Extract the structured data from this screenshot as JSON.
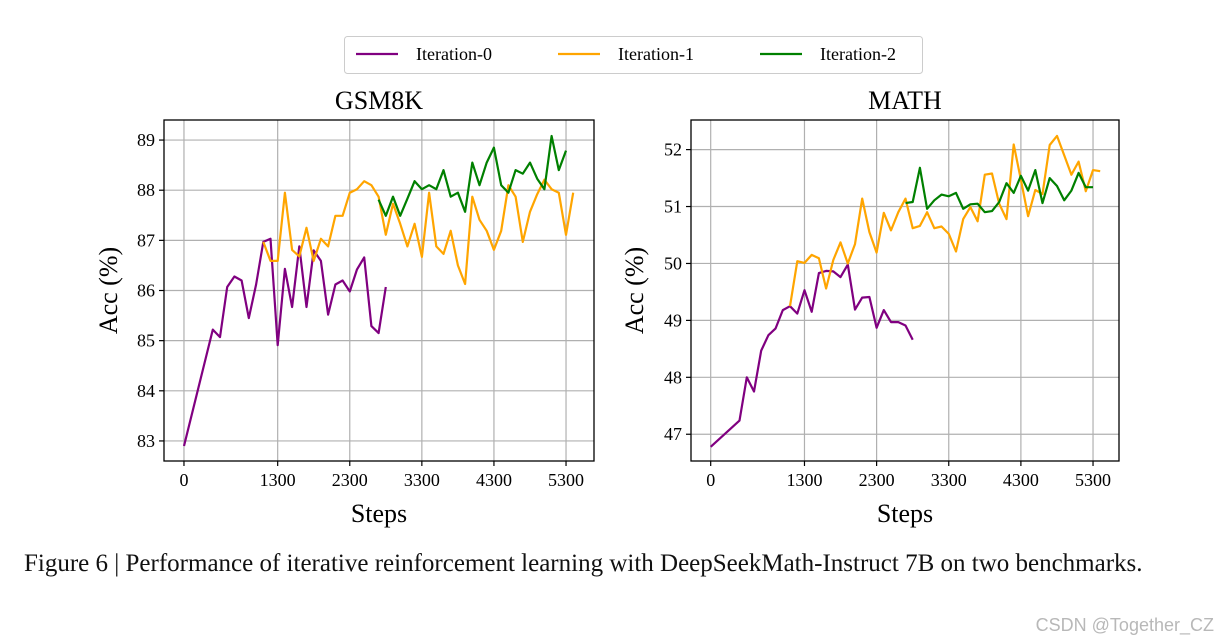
{
  "legend": {
    "placement": "top-center",
    "entries": [
      {
        "name": "Iteration-0",
        "color": "#800080"
      },
      {
        "name": "Iteration-1",
        "color": "#FFA500"
      },
      {
        "name": "Iteration-2",
        "color": "#008000"
      }
    ]
  },
  "chart_data": [
    {
      "type": "line",
      "title": "GSM8K",
      "xlabel": "Steps",
      "ylabel": "Acc (%)",
      "xlim": [
        -277,
        5688
      ],
      "ylim": [
        82.6,
        89.4
      ],
      "xticks": [
        0,
        1300,
        2300,
        3300,
        4300,
        5300
      ],
      "yticks": [
        83,
        84,
        85,
        86,
        87,
        88,
        89
      ],
      "grid": true,
      "series": [
        {
          "name": "Iteration-0",
          "color": "#800080",
          "x": [
            0,
            400,
            500,
            600,
            700,
            800,
            900,
            1000,
            1100,
            1200,
            1300,
            1400,
            1500,
            1600,
            1700,
            1800,
            1900,
            2000,
            2100,
            2200,
            2300,
            2400,
            2500,
            2600,
            2700,
            2800
          ],
          "y": [
            82.9,
            85.22,
            85.07,
            86.07,
            86.28,
            86.2,
            85.45,
            86.12,
            86.97,
            87.03,
            84.91,
            86.43,
            85.67,
            86.88,
            85.67,
            86.8,
            86.59,
            85.52,
            86.12,
            86.2,
            85.98,
            86.42,
            86.66,
            85.29,
            85.15,
            86.07
          ]
        },
        {
          "name": "Iteration-1",
          "color": "#FFA500",
          "x": [
            1100,
            1200,
            1300,
            1400,
            1500,
            1600,
            1700,
            1800,
            1900,
            2000,
            2100,
            2200,
            2300,
            2400,
            2500,
            2600,
            2700,
            2800,
            2900,
            3000,
            3100,
            3200,
            3300,
            3400,
            3500,
            3600,
            3700,
            3800,
            3900,
            4000,
            4100,
            4200,
            4300,
            4400,
            4500,
            4600,
            4700,
            4800,
            4900,
            5000,
            5100,
            5200,
            5300,
            5400
          ],
          "y": [
            86.97,
            86.59,
            86.59,
            87.95,
            86.81,
            86.68,
            87.25,
            86.59,
            87.03,
            86.88,
            87.49,
            87.49,
            87.95,
            88.02,
            88.18,
            88.1,
            87.87,
            87.11,
            87.73,
            87.33,
            86.88,
            87.33,
            86.67,
            87.95,
            86.88,
            86.73,
            87.19,
            86.5,
            86.13,
            87.87,
            87.41,
            87.19,
            86.81,
            87.19,
            88.1,
            87.87,
            86.97,
            87.57,
            87.92,
            88.21,
            88.02,
            87.95,
            87.11,
            87.95
          ]
        },
        {
          "name": "Iteration-2",
          "color": "#008000",
          "x": [
            2700,
            2800,
            2900,
            3000,
            3100,
            3200,
            3300,
            3400,
            3500,
            3600,
            3700,
            3800,
            3900,
            4000,
            4100,
            4200,
            4300,
            4400,
            4500,
            4600,
            4700,
            4800,
            4900,
            5000,
            5100,
            5200,
            5300
          ],
          "y": [
            87.81,
            87.49,
            87.87,
            87.49,
            87.83,
            88.18,
            88.02,
            88.1,
            88.02,
            88.4,
            87.87,
            87.95,
            87.57,
            88.55,
            88.1,
            88.55,
            88.85,
            88.1,
            87.95,
            88.4,
            88.33,
            88.55,
            88.23,
            88.02,
            89.08,
            88.4,
            88.79
          ]
        }
      ]
    },
    {
      "type": "line",
      "title": "MATH",
      "xlabel": "Steps",
      "ylabel": "Acc (%)",
      "xlim": [
        -273,
        5660
      ],
      "ylim": [
        46.53,
        52.52
      ],
      "xticks": [
        0,
        1300,
        2300,
        3300,
        4300,
        5300
      ],
      "yticks": [
        47,
        48,
        49,
        50,
        51,
        52
      ],
      "grid": true,
      "series": [
        {
          "name": "Iteration-0",
          "color": "#800080",
          "x": [
            0,
            400,
            500,
            600,
            700,
            800,
            900,
            1000,
            1100,
            1200,
            1300,
            1400,
            1500,
            1600,
            1700,
            1800,
            1900,
            2000,
            2100,
            2200,
            2300,
            2400,
            2500,
            2600,
            2700,
            2800
          ],
          "y": [
            46.78,
            47.24,
            48.0,
            47.75,
            48.47,
            48.74,
            48.86,
            49.18,
            49.25,
            49.12,
            49.53,
            49.15,
            49.83,
            49.87,
            49.86,
            49.76,
            49.98,
            49.19,
            49.4,
            49.41,
            48.87,
            49.18,
            48.97,
            48.97,
            48.91,
            48.66
          ]
        },
        {
          "name": "Iteration-1",
          "color": "#FFA500",
          "x": [
            1100,
            1200,
            1300,
            1400,
            1500,
            1600,
            1700,
            1800,
            1900,
            2000,
            2100,
            2200,
            2300,
            2400,
            2500,
            2600,
            2700,
            2800,
            2900,
            3000,
            3100,
            3200,
            3300,
            3400,
            3500,
            3600,
            3700,
            3800,
            3900,
            4000,
            4100,
            4200,
            4300,
            4400,
            4500,
            4600,
            4700,
            4800,
            4900,
            5000,
            5100,
            5200,
            5300,
            5400
          ],
          "y": [
            49.25,
            50.04,
            50.01,
            50.15,
            50.09,
            49.56,
            50.06,
            50.37,
            50.0,
            50.34,
            51.14,
            50.55,
            50.19,
            50.89,
            50.58,
            50.9,
            51.14,
            50.62,
            50.66,
            50.9,
            50.62,
            50.65,
            50.52,
            50.21,
            50.78,
            50.99,
            50.74,
            51.56,
            51.58,
            51.05,
            50.78,
            52.09,
            51.47,
            50.83,
            51.29,
            51.22,
            52.08,
            52.24,
            51.9,
            51.56,
            51.79,
            51.27,
            51.64,
            51.62
          ]
        },
        {
          "name": "Iteration-2",
          "color": "#008000",
          "x": [
            2700,
            2800,
            2900,
            3000,
            3100,
            3200,
            3300,
            3400,
            3500,
            3600,
            3700,
            3800,
            3900,
            4000,
            4100,
            4200,
            4300,
            4400,
            4500,
            4600,
            4700,
            4800,
            4900,
            5000,
            5100,
            5200,
            5300
          ],
          "y": [
            51.06,
            51.08,
            51.68,
            50.96,
            51.11,
            51.21,
            51.18,
            51.24,
            50.96,
            51.04,
            51.05,
            50.9,
            50.92,
            51.08,
            51.41,
            51.24,
            51.54,
            51.28,
            51.64,
            51.06,
            51.5,
            51.36,
            51.11,
            51.28,
            51.59,
            51.34,
            51.34
          ]
        }
      ]
    }
  ],
  "caption": "Figure 6 | Performance of iterative reinforcement learning with DeepSeekMath-Instruct 7B on two benchmarks.",
  "watermark": "CSDN @Together_CZ"
}
